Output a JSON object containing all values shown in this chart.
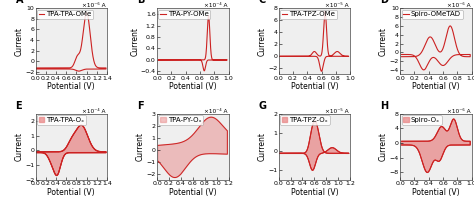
{
  "panels": [
    {
      "label": "A",
      "legend": "TPA-TPA-OMe",
      "xlabel": "Potential (V)",
      "ylabel": "Current (×10⁻⁶ A)",
      "ylabel_top": "×10⁻⁶ A",
      "xlim": [
        0.0,
        1.4
      ],
      "ylim": [
        -2.5,
        10
      ],
      "yticks": [
        -2,
        0,
        2,
        4,
        6,
        8,
        10
      ],
      "xticks": [
        0.0,
        0.2,
        0.4,
        0.6,
        0.8,
        1.0,
        1.2,
        1.4
      ],
      "shape": "cv_A"
    },
    {
      "label": "B",
      "legend": "TPA-PY-OMe",
      "xlabel": "Potential (V)",
      "ylabel": "Current (×10⁻⁴ A)",
      "ylabel_top": "×10⁻⁴ A",
      "xlim": [
        0.0,
        1.0
      ],
      "ylim": [
        -0.5,
        1.8
      ],
      "yticks": [
        -0.4,
        0.0,
        0.4,
        0.8,
        1.2,
        1.6
      ],
      "xticks": [
        0.0,
        0.2,
        0.4,
        0.6,
        0.8,
        1.0
      ],
      "shape": "cv_B"
    },
    {
      "label": "C",
      "legend": "TPA-TPZ-OMe",
      "xlabel": "Potential (V)",
      "ylabel": "Current (×10⁻⁵ A)",
      "ylabel_top": "×10⁻⁵ A",
      "xlim": [
        0.0,
        1.0
      ],
      "ylim": [
        -3,
        8
      ],
      "yticks": [
        -2,
        0,
        2,
        4,
        6,
        8
      ],
      "xticks": [
        0.0,
        0.2,
        0.4,
        0.6,
        0.8,
        1.0
      ],
      "shape": "cv_C"
    },
    {
      "label": "D",
      "legend": "Spiro-OMeTAD",
      "xlabel": "Potential (V)",
      "ylabel": "Current (×10⁻⁶ A)",
      "ylabel_top": "×10⁻⁶ A",
      "xlim": [
        0.0,
        1.0
      ],
      "ylim": [
        -5,
        10
      ],
      "yticks": [
        -4,
        -2,
        0,
        2,
        4,
        6,
        8,
        10
      ],
      "xticks": [
        0.0,
        0.2,
        0.4,
        0.6,
        0.8,
        1.0
      ],
      "shape": "cv_D"
    },
    {
      "label": "E",
      "legend": "TPA-TPA-Oₓ",
      "xlabel": "Potential (V)",
      "ylabel": "Current (×10⁻⁴ A)",
      "ylabel_top": "×10⁻⁴ A",
      "xlim": [
        0.0,
        1.4
      ],
      "ylim": [
        -2.0,
        2.5
      ],
      "yticks": [
        -2,
        -1,
        0,
        1,
        2
      ],
      "xticks": [
        0.0,
        0.2,
        0.4,
        0.6,
        0.8,
        1.0,
        1.2,
        1.4
      ],
      "shape": "cv_E"
    },
    {
      "label": "F",
      "legend": "TPA-PY-Oₓ",
      "xlabel": "Potential (V)",
      "ylabel": "Current (×10⁻⁴ A)",
      "ylabel_top": "×10⁻⁴ A",
      "xlim": [
        0.0,
        1.2
      ],
      "ylim": [
        -2.5,
        3.0
      ],
      "yticks": [
        -2,
        -1,
        0,
        1,
        2,
        3
      ],
      "xticks": [
        0.0,
        0.2,
        0.4,
        0.6,
        0.8,
        1.0,
        1.2
      ],
      "shape": "cv_F"
    },
    {
      "label": "G",
      "legend": "TPA-TPZ-Oₓ",
      "xlabel": "Potential (V)",
      "ylabel": "Current (×10⁻⁵ A)",
      "ylabel_top": "×10⁻⁵ A",
      "xlim": [
        0.0,
        1.2
      ],
      "ylim": [
        -1.5,
        2.0
      ],
      "yticks": [
        -1,
        0,
        1,
        2
      ],
      "xticks": [
        0.0,
        0.2,
        0.4,
        0.6,
        0.8,
        1.0,
        1.2
      ],
      "shape": "cv_G"
    },
    {
      "label": "H",
      "legend": "Spiro-Oₓ",
      "xlabel": "Potential (V)",
      "ylabel": "Current (×10⁻⁶ A)",
      "ylabel_top": "×10⁻⁶ A",
      "xlim": [
        0.0,
        1.0
      ],
      "ylim": [
        -10,
        8
      ],
      "yticks": [
        -8,
        -4,
        0,
        4,
        8
      ],
      "xticks": [
        0.0,
        0.2,
        0.4,
        0.6,
        0.8,
        1.0
      ],
      "shape": "cv_H"
    }
  ],
  "line_color": "#cc2222",
  "fill_color": "#e88888",
  "background_color": "#efefef",
  "label_fontsize": 7,
  "legend_fontsize": 5,
  "tick_fontsize": 4.5,
  "axis_label_fontsize": 5.5
}
